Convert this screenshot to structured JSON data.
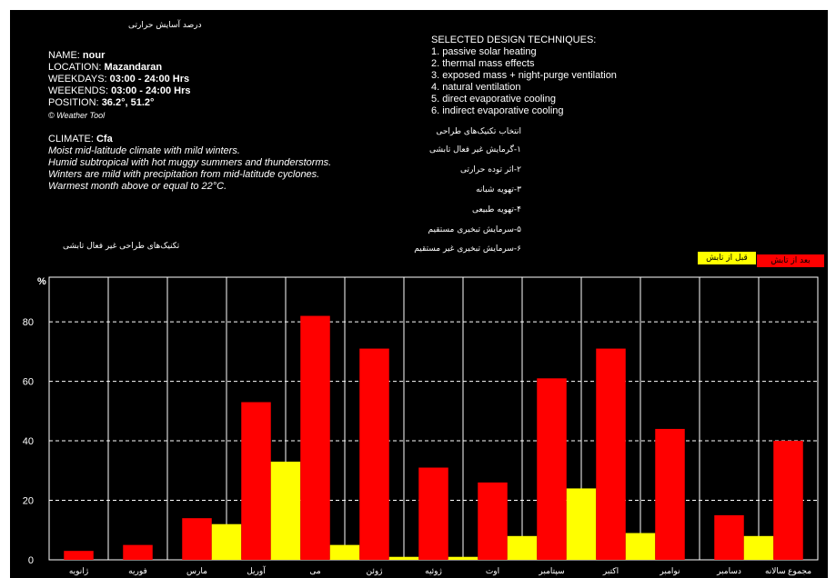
{
  "header": {
    "title": "درصد آسایش حرارتی",
    "name_label": "NAME:",
    "name_value": "nour",
    "location_label": "LOCATION:",
    "location_value": "Mazandaran",
    "weekdays_label": "WEEKDAYS:",
    "weekdays_value": "03:00 - 24:00 Hrs",
    "weekends_label": "WEEKENDS:",
    "weekends_value": "03:00 - 24:00 Hrs",
    "position_label": "POSITION:",
    "position_value": "36.2°, 51.2°",
    "credit": "© Weather Tool"
  },
  "climate": {
    "label": "CLIMATE:",
    "code": "Cfa",
    "lines": [
      "Moist mid-latitude climate with mild winters.",
      "Humid subtropical with hot muggy summers and thunderstorms.",
      "Winters are mild with precipitation from mid-latitude cyclones.",
      "Warmest month above or equal to 22°C."
    ]
  },
  "techniques": {
    "heading": "SELECTED DESIGN TECHNIQUES:",
    "items": [
      "1. passive solar heating",
      "2. thermal mass effects",
      "3. exposed mass + night-purge ventilation",
      "4. natural ventilation",
      "5. direct evaporative cooling",
      "6. indirect evaporative cooling"
    ],
    "fa_heading": "انتخاب تکنیک‌های طراحی",
    "fa_items": [
      "۱-گرمایش غیر فعال تابشی",
      "۲-اثر توده حرارتی",
      "۳-تهویه شبانه",
      "۴-تهویه طبیعی",
      "۵-سرمایش تبخیری مستقیم",
      "۶-سرمایش تبخیری غیر مستقیم"
    ],
    "passive_label": "تکنیک‌های طراحی غیر فعال تابشی"
  },
  "colors": {
    "background": "#000000",
    "after": "#ff0000",
    "before": "#ffff00",
    "grid": "#ffffff",
    "text": "#ffffff"
  },
  "chart_data": {
    "type": "bar",
    "ylabel": "%",
    "ylim": [
      0,
      95
    ],
    "yticks": [
      0,
      20,
      40,
      60,
      80
    ],
    "grid": true,
    "legend": {
      "placement": "top-right"
    },
    "categories": [
      "ژانویه",
      "فوریه",
      "مارس",
      "آوریل",
      "می",
      "ژوئن",
      "ژوئیه",
      "اوت",
      "سپتامبر",
      "اکتبر",
      "نوامبر",
      "دسامبر",
      "مجموع سالانه"
    ],
    "series": [
      {
        "name": "قبل از تابش",
        "color": "#ffff00",
        "values": [
          0,
          0,
          0,
          12,
          33,
          5,
          1,
          1,
          8,
          24,
          9,
          0,
          8
        ]
      },
      {
        "name": "بعد از تابش",
        "color": "#ff0000",
        "values": [
          3,
          5,
          14,
          53,
          82,
          71,
          31,
          26,
          61,
          71,
          44,
          15,
          40
        ]
      }
    ]
  }
}
